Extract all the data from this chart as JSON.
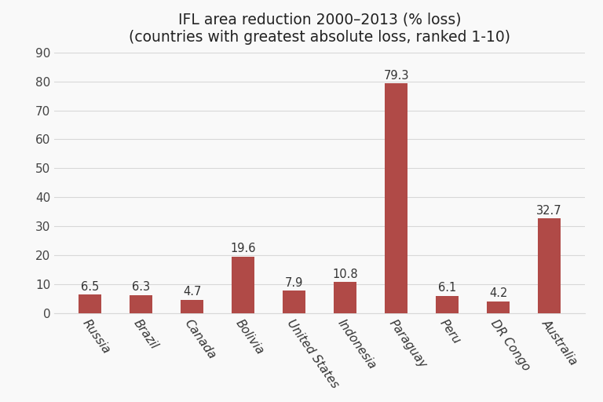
{
  "title_line1": "IFL area reduction 2000–2013 (% loss)",
  "title_line2": "(countries with greatest absolute loss, ranked 1-10)",
  "categories": [
    "Russia",
    "Brazil",
    "Canada",
    "Bolivia",
    "United States",
    "Indonesia",
    "Paraguay",
    "Peru",
    "DR Congo",
    "Australia"
  ],
  "values": [
    6.5,
    6.3,
    4.7,
    19.6,
    7.9,
    10.8,
    79.3,
    6.1,
    4.2,
    32.7
  ],
  "bar_color": "#b04a47",
  "background_color": "#f9f9f9",
  "ylim": [
    0,
    90
  ],
  "yticks": [
    0,
    10,
    20,
    30,
    40,
    50,
    60,
    70,
    80,
    90
  ],
  "title_fontsize": 13.5,
  "tick_fontsize": 11,
  "annotation_fontsize": 10.5,
  "grid_color": "#d8d8d8",
  "spine_color": "#d8d8d8",
  "bar_width": 0.45,
  "label_rotation": -55,
  "label_ha": "left"
}
